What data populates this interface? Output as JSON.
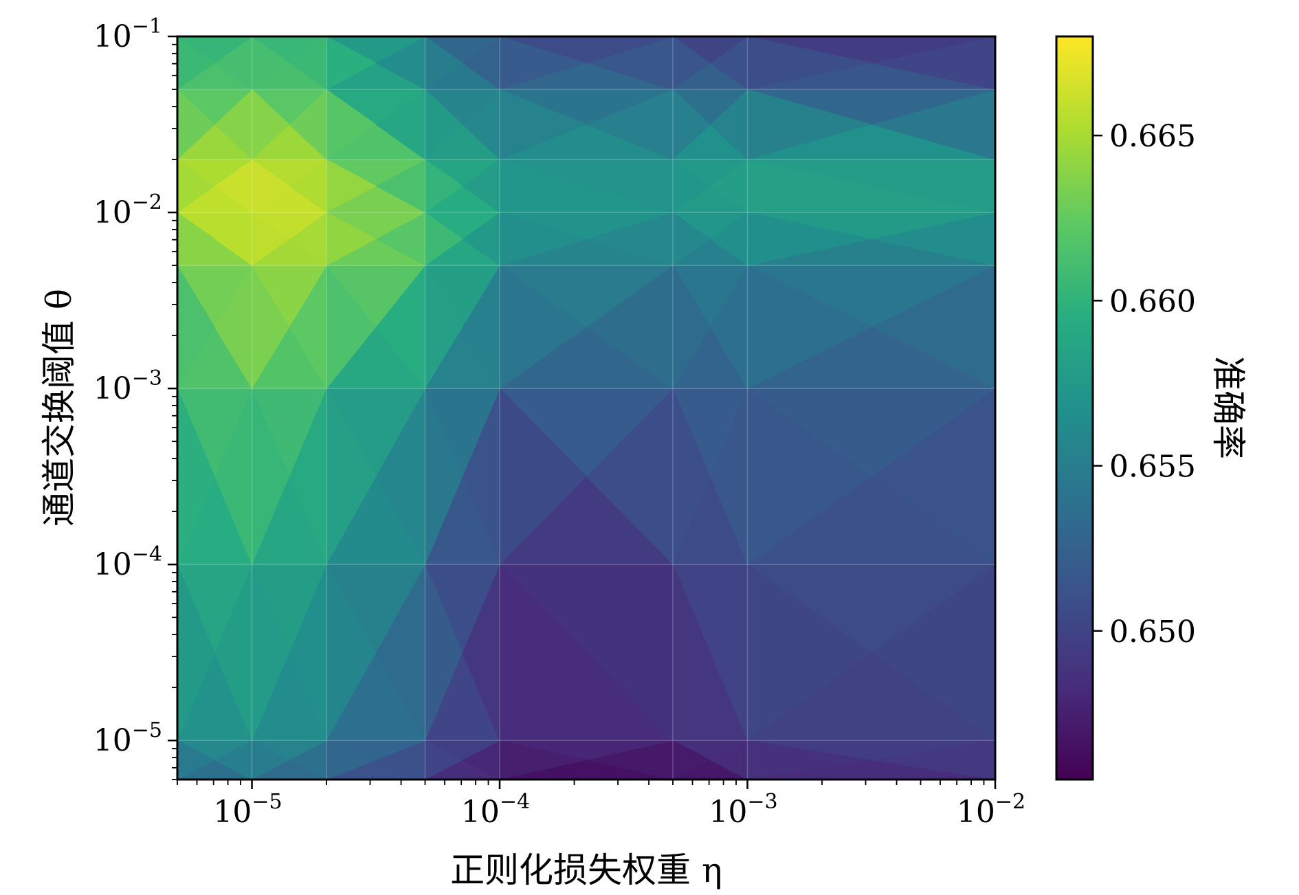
{
  "chart_data": {
    "type": "heatmap",
    "xlabel": "正则化损失权重 η",
    "ylabel": "通道交换阈值 θ",
    "colorbar_label": "准确率",
    "x_scale": "log",
    "y_scale": "log",
    "xlim": [
      5e-06,
      0.01
    ],
    "ylim": [
      6e-06,
      0.1
    ],
    "x_ticks": [
      {
        "value": 1e-05,
        "base": "10",
        "exp": "−5"
      },
      {
        "value": 0.0001,
        "base": "10",
        "exp": "−4"
      },
      {
        "value": 0.001,
        "base": "10",
        "exp": "−3"
      },
      {
        "value": 0.01,
        "base": "10",
        "exp": "−2"
      }
    ],
    "y_ticks": [
      {
        "value": 1e-05,
        "base": "10",
        "exp": "−5"
      },
      {
        "value": 0.0001,
        "base": "10",
        "exp": "−4"
      },
      {
        "value": 0.001,
        "base": "10",
        "exp": "−3"
      },
      {
        "value": 0.01,
        "base": "10",
        "exp": "−2"
      },
      {
        "value": 0.1,
        "base": "10",
        "exp": "−1"
      }
    ],
    "colorbar_range": [
      0.6455,
      0.668
    ],
    "colorbar_ticks": [
      "0.650",
      "0.655",
      "0.660",
      "0.665"
    ],
    "colormap": "viridis",
    "grid": true,
    "x": [
      5e-06,
      1e-05,
      2e-05,
      5e-05,
      0.0001,
      0.0005,
      0.001,
      0.01
    ],
    "y": [
      6e-06,
      1e-05,
      0.0001,
      0.001,
      0.005,
      0.01,
      0.02,
      0.05,
      0.1
    ],
    "z": [
      [
        0.653,
        0.6535,
        0.652,
        0.6495,
        0.6465,
        0.6458,
        0.6475,
        0.6485
      ],
      [
        0.656,
        0.657,
        0.655,
        0.6515,
        0.6485,
        0.648,
        0.6495,
        0.65
      ],
      [
        0.659,
        0.659,
        0.6575,
        0.654,
        0.648,
        0.6495,
        0.651,
        0.6505
      ],
      [
        0.66,
        0.6625,
        0.66,
        0.6565,
        0.653,
        0.652,
        0.6525,
        0.652
      ],
      [
        0.662,
        0.665,
        0.664,
        0.6615,
        0.656,
        0.6545,
        0.655,
        0.6545
      ],
      [
        0.665,
        0.667,
        0.6655,
        0.6615,
        0.6575,
        0.657,
        0.6585,
        0.658
      ],
      [
        0.664,
        0.666,
        0.6645,
        0.66,
        0.657,
        0.657,
        0.658,
        0.6575
      ],
      [
        0.6615,
        0.662,
        0.661,
        0.656,
        0.654,
        0.653,
        0.653,
        0.651
      ],
      [
        0.6595,
        0.6605,
        0.66,
        0.655,
        0.65,
        0.65,
        0.649,
        0.649
      ]
    ]
  }
}
